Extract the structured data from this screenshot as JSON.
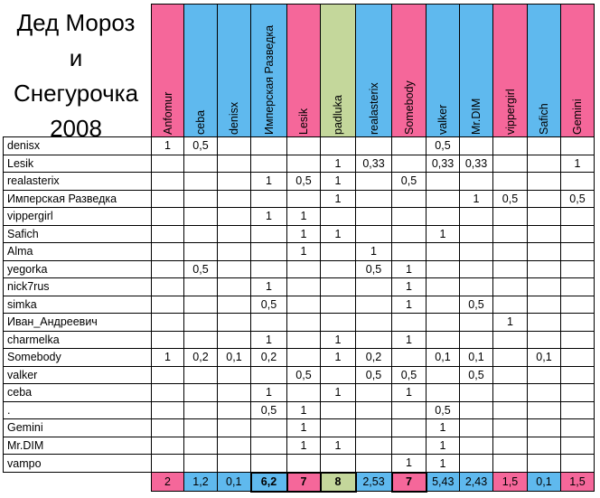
{
  "title": {
    "lines": [
      "Дед Мороз",
      "и",
      "Снегурочка",
      "2008"
    ]
  },
  "columns": [
    {
      "label": "Anfomur",
      "color": "#f5679a"
    },
    {
      "label": "ceba",
      "color": "#5fb9ee"
    },
    {
      "label": "denisx",
      "color": "#5fb9ee"
    },
    {
      "label": "Имперская Разведка",
      "color": "#5fb9ee"
    },
    {
      "label": "Lesik",
      "color": "#f5679a"
    },
    {
      "label": "padluka",
      "color": "#c4d79b"
    },
    {
      "label": "realasterix",
      "color": "#5fb9ee"
    },
    {
      "label": "Somebody",
      "color": "#f5679a"
    },
    {
      "label": "valker",
      "color": "#5fb9ee"
    },
    {
      "label": "Mr.DIM",
      "color": "#5fb9ee"
    },
    {
      "label": "vippergirl",
      "color": "#f5679a"
    },
    {
      "label": "Safich",
      "color": "#5fb9ee"
    },
    {
      "label": "Gemini",
      "color": "#f5679a"
    }
  ],
  "rows": [
    {
      "name": "denisx",
      "values": [
        "1",
        "0,5",
        "",
        "",
        "",
        "",
        "",
        "",
        "0,5",
        "",
        "",
        "",
        ""
      ]
    },
    {
      "name": "Lesik",
      "values": [
        "",
        "",
        "",
        "",
        "",
        "1",
        "0,33",
        "",
        "0,33",
        "0,33",
        "",
        "",
        "1"
      ]
    },
    {
      "name": "realasterix",
      "values": [
        "",
        "",
        "",
        "1",
        "0,5",
        "1",
        "",
        "0,5",
        "",
        "",
        "",
        "",
        ""
      ]
    },
    {
      "name": "Имперская Разведка",
      "values": [
        "",
        "",
        "",
        "",
        "",
        "1",
        "",
        "",
        "",
        "1",
        "0,5",
        "",
        "0,5"
      ]
    },
    {
      "name": "vippergirl",
      "values": [
        "",
        "",
        "",
        "1",
        "1",
        "",
        "",
        "",
        "",
        "",
        "",
        "",
        ""
      ]
    },
    {
      "name": "Safich",
      "values": [
        "",
        "",
        "",
        "",
        "1",
        "1",
        "",
        "",
        "1",
        "",
        "",
        "",
        ""
      ]
    },
    {
      "name": "Alma",
      "values": [
        "",
        "",
        "",
        "",
        "1",
        "",
        "1",
        "",
        "",
        "",
        "",
        "",
        ""
      ]
    },
    {
      "name": "yegorka",
      "values": [
        "",
        "0,5",
        "",
        "",
        "",
        "",
        "0,5",
        "1",
        "",
        "",
        "",
        "",
        ""
      ]
    },
    {
      "name": "nick7rus",
      "values": [
        "",
        "",
        "",
        "1",
        "",
        "",
        "",
        "1",
        "",
        "",
        "",
        "",
        ""
      ]
    },
    {
      "name": "simka",
      "values": [
        "",
        "",
        "",
        "0,5",
        "",
        "",
        "",
        "1",
        "",
        "0,5",
        "",
        "",
        ""
      ]
    },
    {
      "name": "Иван_Андреевич",
      "values": [
        "",
        "",
        "",
        "",
        "",
        "",
        "",
        "",
        "",
        "",
        "1",
        "",
        ""
      ]
    },
    {
      "name": "charmelka",
      "values": [
        "",
        "",
        "",
        "1",
        "",
        "1",
        "",
        "1",
        "",
        "",
        "",
        "",
        ""
      ]
    },
    {
      "name": "Somebody",
      "values": [
        "1",
        "0,2",
        "0,1",
        "0,2",
        "",
        "1",
        "0,2",
        "",
        "0,1",
        "0,1",
        "",
        "0,1",
        ""
      ]
    },
    {
      "name": "valker",
      "values": [
        "",
        "",
        "",
        "",
        "0,5",
        "",
        "0,5",
        "0,5",
        "",
        "0,5",
        "",
        "",
        ""
      ]
    },
    {
      "name": "ceba",
      "values": [
        "",
        "",
        "",
        "1",
        "",
        "1",
        "",
        "1",
        "",
        "",
        "",
        "",
        ""
      ]
    },
    {
      "name": ".",
      "values": [
        "",
        "",
        "",
        "0,5",
        "1",
        "",
        "",
        "",
        "0,5",
        "",
        "",
        "",
        ""
      ]
    },
    {
      "name": "Gemini",
      "values": [
        "",
        "",
        "",
        "",
        "1",
        "",
        "",
        "",
        "1",
        "",
        "",
        "",
        ""
      ]
    },
    {
      "name": "Mr.DIM",
      "values": [
        "",
        "",
        "",
        "",
        "1",
        "1",
        "",
        "",
        "1",
        "",
        "",
        "",
        ""
      ]
    },
    {
      "name": "vampo",
      "values": [
        "",
        "",
        "",
        "",
        "",
        "",
        "",
        "1",
        "1",
        "",
        "",
        "",
        ""
      ]
    }
  ],
  "totals": [
    {
      "value": "2",
      "bold": false
    },
    {
      "value": "1,2",
      "bold": false
    },
    {
      "value": "0,1",
      "bold": false
    },
    {
      "value": "6,2",
      "bold": true
    },
    {
      "value": "7",
      "bold": true
    },
    {
      "value": "8",
      "bold": true
    },
    {
      "value": "2,53",
      "bold": false
    },
    {
      "value": "7",
      "bold": true
    },
    {
      "value": "5,43",
      "bold": false
    },
    {
      "value": "2,43",
      "bold": false
    },
    {
      "value": "1,5",
      "bold": false
    },
    {
      "value": "0,1",
      "bold": false
    },
    {
      "value": "1,5",
      "bold": false
    }
  ]
}
